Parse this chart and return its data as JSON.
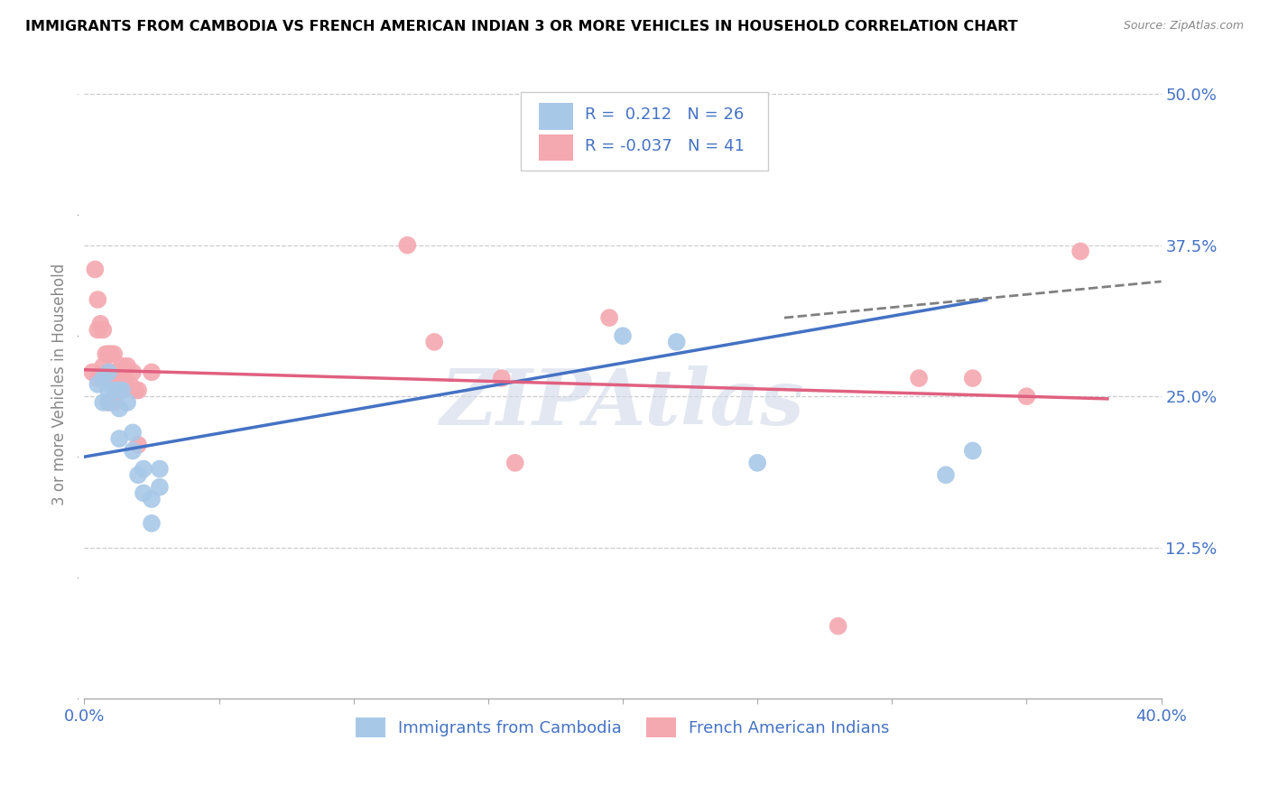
{
  "title": "IMMIGRANTS FROM CAMBODIA VS FRENCH AMERICAN INDIAN 3 OR MORE VEHICLES IN HOUSEHOLD CORRELATION CHART",
  "source": "Source: ZipAtlas.com",
  "ylabel": "3 or more Vehicles in Household",
  "xlim": [
    0.0,
    0.4
  ],
  "ylim": [
    0.0,
    0.52
  ],
  "xticks": [
    0.0,
    0.05,
    0.1,
    0.15,
    0.2,
    0.25,
    0.3,
    0.35,
    0.4
  ],
  "xticklabels": [
    "0.0%",
    "",
    "",
    "",
    "",
    "",
    "",
    "",
    "40.0%"
  ],
  "ytick_positions": [
    0.125,
    0.25,
    0.375,
    0.5
  ],
  "ytick_labels": [
    "12.5%",
    "25.0%",
    "37.5%",
    "50.0%"
  ],
  "blue_R": 0.212,
  "blue_N": 26,
  "pink_R": -0.037,
  "pink_N": 41,
  "blue_color": "#a8c8e8",
  "pink_color": "#f4a8b0",
  "blue_line_color": "#4472c4",
  "pink_line_color": "#e06080",
  "watermark": "ZIPAtlas",
  "blue_points_x": [
    0.013,
    0.005,
    0.007,
    0.007,
    0.009,
    0.009,
    0.009,
    0.011,
    0.013,
    0.013,
    0.014,
    0.016,
    0.018,
    0.018,
    0.02,
    0.022,
    0.022,
    0.025,
    0.025,
    0.028,
    0.028,
    0.2,
    0.22,
    0.25,
    0.32,
    0.33
  ],
  "blue_points_y": [
    0.215,
    0.26,
    0.245,
    0.265,
    0.255,
    0.27,
    0.245,
    0.255,
    0.255,
    0.24,
    0.255,
    0.245,
    0.22,
    0.205,
    0.185,
    0.19,
    0.17,
    0.165,
    0.145,
    0.175,
    0.19,
    0.3,
    0.295,
    0.195,
    0.185,
    0.205
  ],
  "pink_points_x": [
    0.003,
    0.004,
    0.005,
    0.005,
    0.005,
    0.006,
    0.007,
    0.007,
    0.008,
    0.008,
    0.009,
    0.009,
    0.009,
    0.01,
    0.01,
    0.011,
    0.011,
    0.011,
    0.012,
    0.013,
    0.013,
    0.014,
    0.014,
    0.015,
    0.016,
    0.017,
    0.018,
    0.019,
    0.02,
    0.02,
    0.025,
    0.12,
    0.13,
    0.155,
    0.16,
    0.195,
    0.28,
    0.31,
    0.33,
    0.35,
    0.37
  ],
  "pink_points_y": [
    0.27,
    0.355,
    0.33,
    0.305,
    0.265,
    0.31,
    0.305,
    0.275,
    0.285,
    0.265,
    0.285,
    0.27,
    0.245,
    0.285,
    0.27,
    0.285,
    0.27,
    0.245,
    0.27,
    0.265,
    0.255,
    0.275,
    0.255,
    0.265,
    0.275,
    0.26,
    0.27,
    0.255,
    0.255,
    0.21,
    0.27,
    0.375,
    0.295,
    0.265,
    0.195,
    0.315,
    0.06,
    0.265,
    0.265,
    0.25,
    0.37
  ],
  "blue_line_x0": 0.0,
  "blue_line_y0": 0.2,
  "blue_line_x1": 0.335,
  "blue_line_y1": 0.33,
  "pink_line_x0": 0.0,
  "pink_line_y0": 0.272,
  "pink_line_x1": 0.38,
  "pink_line_y1": 0.248,
  "dash_line_x0": 0.26,
  "dash_line_y0": 0.315,
  "dash_line_x1": 0.4,
  "dash_line_y1": 0.345
}
